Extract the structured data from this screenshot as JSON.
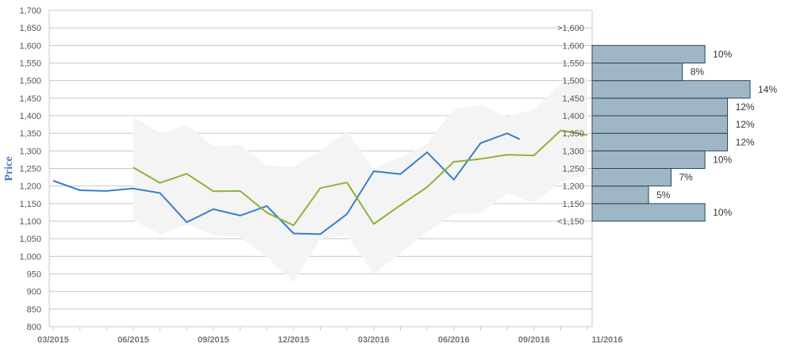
{
  "chart_data": {
    "type": "line",
    "title": "",
    "xlabel": "",
    "ylabel": "Price",
    "ylim": [
      800,
      1700
    ],
    "y_ticks": [
      800,
      850,
      900,
      950,
      1000,
      1050,
      1100,
      1150,
      1200,
      1250,
      1300,
      1350,
      1400,
      1450,
      1500,
      1550,
      1600,
      1650,
      1700
    ],
    "y_tick_labels": [
      "800",
      "850",
      "900",
      "950",
      "1,000",
      "1,050",
      "1,100",
      "1,150",
      "1,200",
      "1,250",
      "1,300",
      "1,350",
      "1,400",
      "1,450",
      "1,500",
      "1,550",
      "1,600",
      "1,650",
      "1,700"
    ],
    "x_tick_labels": [
      "03/2015",
      "06/2015",
      "09/2015",
      "12/2015",
      "03/2016",
      "06/2016",
      "09/2016",
      "11/2016"
    ],
    "grid": true,
    "series": [
      {
        "color": "#3a7fc6",
        "x": [
          "2015-03",
          "2015-04",
          "2015-05",
          "2015-06",
          "2015-07",
          "2015-08",
          "2015-09",
          "2015-10",
          "2015-11",
          "2015-12",
          "2016-01",
          "2016-02",
          "2016-03",
          "2016-04",
          "2016-05",
          "2016-06",
          "2016-07",
          "2016-08",
          "2016-08-15"
        ],
        "values": [
          1215,
          1188,
          1186,
          1193,
          1180,
          1097,
          1134,
          1116,
          1143,
          1065,
          1063,
          1120,
          1242,
          1234,
          1296,
          1218,
          1322,
          1350,
          1333
        ]
      },
      {
        "color": "#8db33a",
        "x": [
          "2015-06",
          "2015-07",
          "2015-08",
          "2015-09",
          "2015-10",
          "2015-11",
          "2015-12",
          "2016-01",
          "2016-02",
          "2016-03",
          "2016-04",
          "2016-05",
          "2016-06",
          "2016-07",
          "2016-08",
          "2016-09",
          "2016-10",
          "2016-11"
        ],
        "values": [
          1253,
          1209,
          1235,
          1185,
          1186,
          1124,
          1088,
          1194,
          1210,
          1092,
          1145,
          1197,
          1269,
          1277,
          1289,
          1287,
          1358,
          1345
        ]
      }
    ],
    "band": {
      "color": "#f4f4f4",
      "x": [
        "2015-06",
        "2015-07",
        "2015-08",
        "2015-09",
        "2015-10",
        "2015-11",
        "2015-12",
        "2016-01",
        "2016-02",
        "2016-03",
        "2016-04",
        "2016-05",
        "2016-06",
        "2016-07",
        "2016-08",
        "2016-09",
        "2016-10",
        "2016-11"
      ],
      "upper": [
        1398,
        1350,
        1373,
        1313,
        1318,
        1258,
        1255,
        1300,
        1355,
        1250,
        1281,
        1320,
        1419,
        1430,
        1398,
        1418,
        1490,
        1510
      ],
      "lower": [
        1102,
        1063,
        1090,
        1060,
        1055,
        998,
        926,
        1050,
        1060,
        950,
        1008,
        1069,
        1120,
        1123,
        1179,
        1151,
        1212,
        1230
      ]
    },
    "histogram": {
      "color": "#a0b6c4",
      "edge_color": "#1e4a5e",
      "bins": [
        {
          "label": "<1,150",
          "lo": 1100,
          "hi": 1150,
          "pct": 10,
          "pct_label": "10%"
        },
        {
          "label": "1,150",
          "lo": 1150,
          "hi": 1200,
          "pct": 5,
          "pct_label": "5%"
        },
        {
          "label": "1,200",
          "lo": 1200,
          "hi": 1250,
          "pct": 7,
          "pct_label": "7%"
        },
        {
          "label": "1,250",
          "lo": 1250,
          "hi": 1300,
          "pct": 10,
          "pct_label": "10%"
        },
        {
          "label": "1,300",
          "lo": 1300,
          "hi": 1350,
          "pct": 12,
          "pct_label": "12%"
        },
        {
          "label": "1,350",
          "lo": 1350,
          "hi": 1400,
          "pct": 12,
          "pct_label": "12%"
        },
        {
          "label": "1,400",
          "lo": 1400,
          "hi": 1450,
          "pct": 12,
          "pct_label": "12%"
        },
        {
          "label": "1,450",
          "lo": 1450,
          "hi": 1500,
          "pct": 14,
          "pct_label": "14%"
        },
        {
          "label": "1,500",
          "lo": 1500,
          "hi": 1550,
          "pct": 8,
          "pct_label": "8%"
        },
        {
          "label": "1,550",
          "lo": 1550,
          "hi": 1600,
          "pct": 10,
          "pct_label": "10%"
        }
      ],
      "top_labels": [
        "1,600",
        ">1,600"
      ]
    }
  }
}
